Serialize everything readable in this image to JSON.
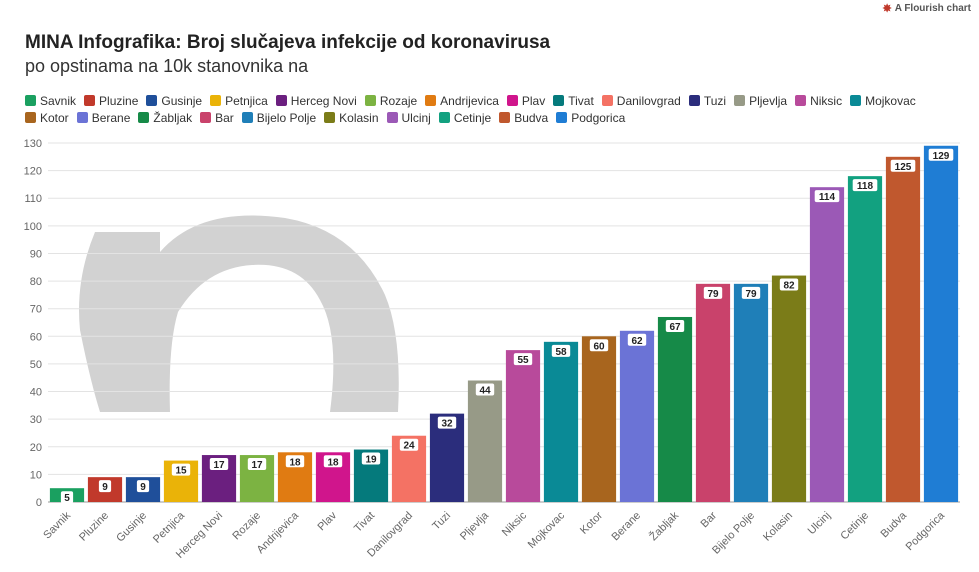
{
  "credit": {
    "text": "A Flourish chart",
    "icon": "flourish-logo-icon"
  },
  "chart_data": {
    "type": "bar",
    "title": "MINA Infografika: Broj slučajeva infekcije od koronavirusa",
    "subtitle": "po opstinama na 10k stanovnika na",
    "ylim": [
      0,
      130
    ],
    "yticks": [
      0,
      10,
      20,
      30,
      40,
      50,
      60,
      70,
      80,
      90,
      100,
      110,
      120,
      130
    ],
    "grid": true,
    "legend_position": "top",
    "categories": [
      "Savnik",
      "Pluzine",
      "Gusinje",
      "Petnjica",
      "Herceg Novi",
      "Rozaje",
      "Andrijevica",
      "Plav",
      "Tivat",
      "Danilovgrad",
      "Tuzi",
      "Pljevlja",
      "Niksic",
      "Mojkovac",
      "Kotor",
      "Berane",
      "Žabljak",
      "Bar",
      "Bijelo Polje",
      "Kolasin",
      "Ulcinj",
      "Cetinje",
      "Budva",
      "Podgorica"
    ],
    "values": [
      5,
      9,
      9,
      15,
      17,
      17,
      18,
      18,
      19,
      24,
      32,
      44,
      55,
      58,
      60,
      62,
      67,
      79,
      79,
      82,
      114,
      118,
      125,
      129
    ],
    "colors": [
      "#1aa060",
      "#c1392b",
      "#1f4f9a",
      "#eab308",
      "#6b1f7f",
      "#7cb342",
      "#e07b12",
      "#d0158c",
      "#057a7c",
      "#f47264",
      "#2b2d7c",
      "#979a87",
      "#b84a9b",
      "#0a8a96",
      "#a8651e",
      "#6b73d6",
      "#168a48",
      "#c9426b",
      "#1f7fb8",
      "#7b7c18",
      "#9b59b6",
      "#12a180",
      "#c0582e",
      "#1f7dd4"
    ]
  },
  "legend": [
    {
      "label": "Savnik",
      "color": "#1aa060"
    },
    {
      "label": "Pluzine",
      "color": "#c1392b"
    },
    {
      "label": "Gusinje",
      "color": "#1f4f9a"
    },
    {
      "label": "Petnjica",
      "color": "#eab308"
    },
    {
      "label": "Herceg Novi",
      "color": "#6b1f7f"
    },
    {
      "label": "Rozaje",
      "color": "#7cb342"
    },
    {
      "label": "Andrijevica",
      "color": "#e07b12"
    },
    {
      "label": "Plav",
      "color": "#d0158c"
    },
    {
      "label": "Tivat",
      "color": "#057a7c"
    },
    {
      "label": "Danilovgrad",
      "color": "#f47264"
    },
    {
      "label": "Tuzi",
      "color": "#2b2d7c"
    },
    {
      "label": "Pljevlja",
      "color": "#979a87"
    },
    {
      "label": "Niksic",
      "color": "#b84a9b"
    },
    {
      "label": "Mojkovac",
      "color": "#0a8a96"
    },
    {
      "label": "Kotor",
      "color": "#a8651e"
    },
    {
      "label": "Berane",
      "color": "#6b73d6"
    },
    {
      "label": "Žabljak",
      "color": "#168a48"
    },
    {
      "label": "Bar",
      "color": "#c9426b"
    },
    {
      "label": "Bijelo Polje",
      "color": "#1f7fb8"
    },
    {
      "label": "Kolasin",
      "color": "#7b7c18"
    },
    {
      "label": "Ulcinj",
      "color": "#9b59b6"
    },
    {
      "label": "Cetinje",
      "color": "#12a180"
    },
    {
      "label": "Budva",
      "color": "#c0582e"
    },
    {
      "label": "Podgorica",
      "color": "#1f7dd4"
    }
  ]
}
